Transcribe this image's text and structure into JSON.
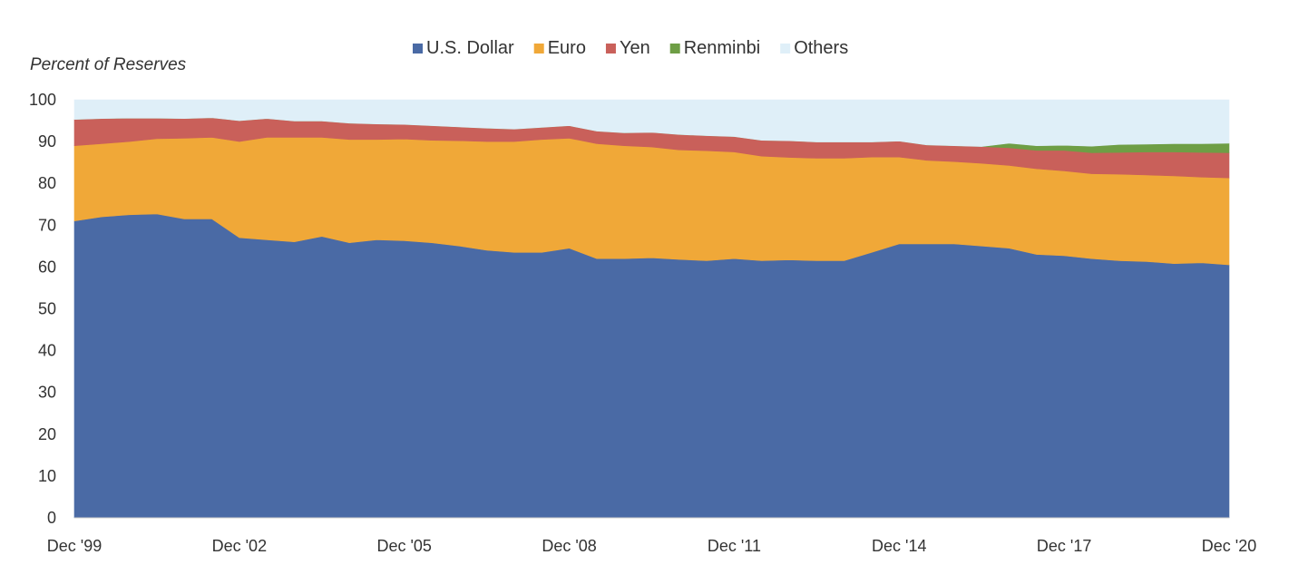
{
  "chart_data": {
    "type": "area",
    "stacked": true,
    "ylabel": "Percent of Reserves",
    "ylim": [
      0,
      100
    ],
    "yticks": [
      0,
      10,
      20,
      30,
      40,
      50,
      60,
      70,
      80,
      90,
      100
    ],
    "xlim": [
      "1999-12",
      "2020-12"
    ],
    "x_tick_labels": [
      "Dec '99",
      "Dec '02",
      "Dec '05",
      "Dec '08",
      "Dec '11",
      "Dec '14",
      "Dec '17",
      "Dec '20"
    ],
    "x_tick_dates": [
      "1999-12",
      "2002-12",
      "2005-12",
      "2008-12",
      "2011-12",
      "2014-12",
      "2017-12",
      "2020-12"
    ],
    "legend_position": "top-center",
    "grid": false,
    "x": [
      "1999-12",
      "2000-06",
      "2000-12",
      "2001-06",
      "2001-12",
      "2002-06",
      "2002-12",
      "2003-06",
      "2003-12",
      "2004-06",
      "2004-12",
      "2005-06",
      "2005-12",
      "2006-06",
      "2006-12",
      "2007-06",
      "2007-12",
      "2008-06",
      "2008-12",
      "2009-06",
      "2009-12",
      "2010-06",
      "2010-12",
      "2011-06",
      "2011-12",
      "2012-06",
      "2012-12",
      "2013-06",
      "2013-12",
      "2014-06",
      "2014-12",
      "2015-06",
      "2015-12",
      "2016-06",
      "2016-12",
      "2017-06",
      "2017-12",
      "2018-06",
      "2018-12",
      "2019-06",
      "2019-12",
      "2020-06",
      "2020-12"
    ],
    "series": [
      {
        "name": "U.S. Dollar",
        "color": "#4a6aa5",
        "values": [
          71,
          72,
          72.5,
          72.7,
          71.5,
          71.5,
          67,
          66.5,
          66,
          67.3,
          65.8,
          66.5,
          66.3,
          65.8,
          65,
          64,
          63.5,
          63.5,
          64.5,
          62,
          62,
          62.2,
          61.8,
          61.5,
          62,
          61.5,
          61.7,
          61.5,
          61.5,
          63.5,
          65.5,
          65.5,
          65.5,
          65,
          64.5,
          63,
          62.7,
          62,
          61.5,
          61.3,
          60.8,
          61,
          60.5
        ]
      },
      {
        "name": "Euro",
        "color": "#f0a838",
        "values": [
          18,
          17.5,
          17.5,
          18,
          19.3,
          19.5,
          23,
          24.5,
          25,
          23.7,
          24.7,
          24,
          24.3,
          24.5,
          25.2,
          26,
          26.5,
          27,
          26.3,
          27.5,
          27,
          26.5,
          26.2,
          26.3,
          25.5,
          25,
          24.5,
          24.5,
          24.5,
          22.8,
          20.8,
          20,
          19.7,
          19.8,
          19.8,
          20.5,
          20.3,
          20.3,
          20.7,
          20.7,
          21,
          20.5,
          20.8
        ]
      },
      {
        "name": "Yen",
        "color": "#c9605a",
        "values": [
          6.3,
          6,
          5.6,
          4.9,
          4.7,
          4.7,
          5,
          4.5,
          3.9,
          3.9,
          3.9,
          3.7,
          3.5,
          3.5,
          3.3,
          3.2,
          3,
          2.9,
          3,
          3,
          3.1,
          3.5,
          3.7,
          3.6,
          3.7,
          3.8,
          4,
          3.9,
          3.9,
          3.6,
          3.8,
          3.7,
          3.8,
          4,
          4.2,
          4.4,
          4.9,
          5,
          5.2,
          5.5,
          5.7,
          5.9,
          6
        ]
      },
      {
        "name": "Renminbi",
        "color": "#6e9e45",
        "values": [
          0,
          0,
          0,
          0,
          0,
          0,
          0,
          0,
          0,
          0,
          0,
          0,
          0,
          0,
          0,
          0,
          0,
          0,
          0,
          0,
          0,
          0,
          0,
          0,
          0,
          0,
          0,
          0,
          0,
          0,
          0,
          0,
          0,
          0,
          1.1,
          1.1,
          1.2,
          1.6,
          1.9,
          1.9,
          2,
          2.1,
          2.3
        ]
      },
      {
        "name": "Others",
        "color": "#dfeff8",
        "values": [
          4.7,
          4.5,
          4.4,
          4.4,
          4.5,
          4.3,
          5,
          4.5,
          5.1,
          5.1,
          5.6,
          5.8,
          5.9,
          6.2,
          6.5,
          6.8,
          7,
          6.6,
          6.2,
          7.5,
          7.9,
          7.8,
          8.3,
          8.6,
          8.8,
          9.7,
          9.8,
          10.1,
          10.1,
          10.1,
          9.9,
          10.8,
          11,
          11.2,
          10.4,
          11,
          10.9,
          11.1,
          10.7,
          10.6,
          10.5,
          10.5,
          10.4
        ]
      }
    ]
  }
}
